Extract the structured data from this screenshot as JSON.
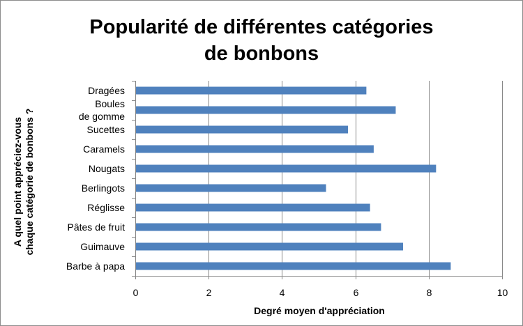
{
  "chart_data": {
    "type": "bar",
    "orientation": "horizontal",
    "title": [
      "Popularité de différentes catégories",
      "de bonbons"
    ],
    "xlabel": "Degré moyen d'appréciation",
    "ylabel": [
      "A quel point appréciez-vous",
      "chaque catégorie de bonbons ?"
    ],
    "categories": [
      [
        "Dragées"
      ],
      [
        "Boules",
        "de gomme"
      ],
      [
        "Sucettes"
      ],
      [
        "Caramels"
      ],
      [
        "Nougats"
      ],
      [
        "Berlingots"
      ],
      [
        "Réglisse"
      ],
      [
        "Pâtes de fruit"
      ],
      [
        "Guimauve"
      ],
      [
        "Barbe à papa"
      ]
    ],
    "values": [
      6.3,
      7.1,
      5.8,
      6.5,
      8.2,
      5.2,
      6.4,
      6.7,
      7.3,
      8.6
    ],
    "xlim": [
      0,
      10
    ],
    "xticks": [
      0,
      2,
      4,
      6,
      8,
      10
    ],
    "grid": "vertical",
    "legend": "none",
    "bar_color": "#4f81bd",
    "grid_color": "#868686"
  }
}
